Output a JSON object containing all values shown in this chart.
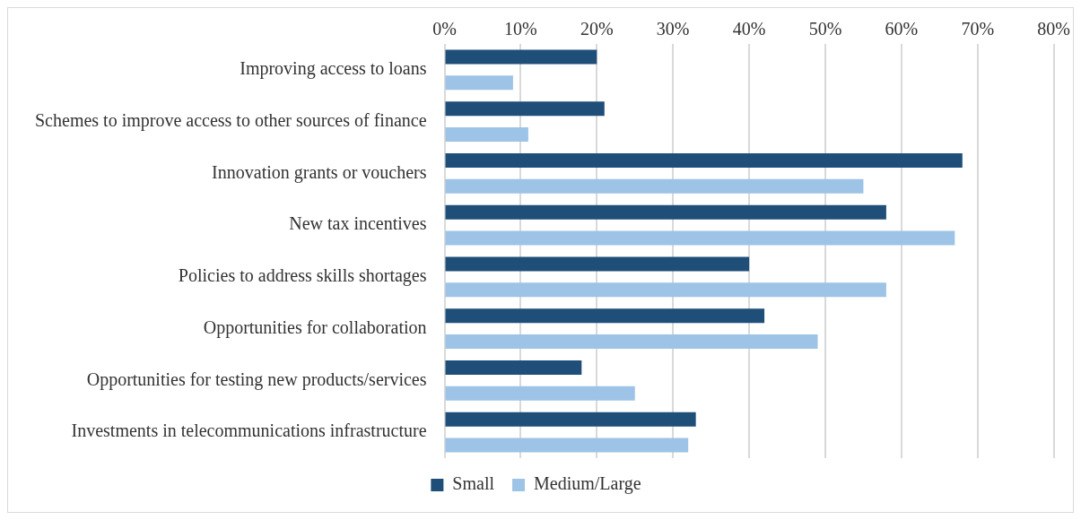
{
  "chart_data": {
    "type": "bar",
    "orientation": "horizontal",
    "categories": [
      "Improving access to loans",
      "Schemes to improve access to other sources of finance",
      "Innovation grants or vouchers",
      "New tax incentives",
      "Policies to address skills shortages",
      "Opportunities for collaboration",
      "Opportunities for testing new products/services",
      "Investments in telecommunications infrastructure"
    ],
    "series": [
      {
        "name": "Small",
        "color": "#1f4e79",
        "values": [
          20,
          21,
          68,
          58,
          40,
          42,
          18,
          33
        ]
      },
      {
        "name": "Medium/Large",
        "color": "#9dc3e6",
        "values": [
          9,
          11,
          55,
          67,
          58,
          49,
          25,
          32
        ]
      }
    ],
    "xlim": [
      0,
      80
    ],
    "xticks": [
      {
        "value": 0,
        "label": "0%"
      },
      {
        "value": 10,
        "label": "10%"
      },
      {
        "value": 20,
        "label": "20%"
      },
      {
        "value": 30,
        "label": "30%"
      },
      {
        "value": 40,
        "label": "40%"
      },
      {
        "value": 50,
        "label": "50%"
      },
      {
        "value": 60,
        "label": "60%"
      },
      {
        "value": 70,
        "label": "70%"
      },
      {
        "value": 80,
        "label": "80%"
      }
    ],
    "grid": "x",
    "legend": "bottom"
  }
}
